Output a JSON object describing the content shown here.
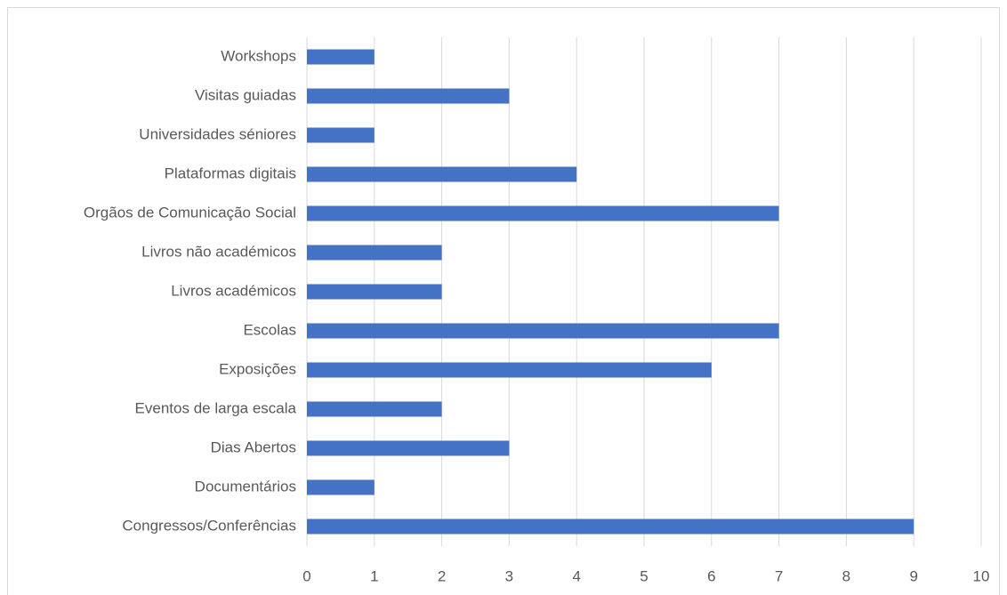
{
  "chart_data": {
    "type": "barh",
    "categories": [
      "Workshops",
      "Visitas guiadas",
      "Universidades séniores",
      "Plataformas digitais",
      "Orgãos de Comunicação Social",
      "Livros não académicos",
      "Livros académicos",
      "Escolas",
      "Exposições",
      "Eventos de larga escala",
      "Dias Abertos",
      "Documentários",
      "Congressos/Conferências"
    ],
    "values": [
      1,
      3,
      1,
      4,
      7,
      2,
      2,
      7,
      6,
      2,
      3,
      1,
      9
    ],
    "color": "#4472c4",
    "xlim": [
      0,
      10
    ],
    "xticks": [
      0,
      1,
      2,
      3,
      4,
      5,
      6,
      7,
      8,
      9,
      10
    ],
    "grid": true
  }
}
